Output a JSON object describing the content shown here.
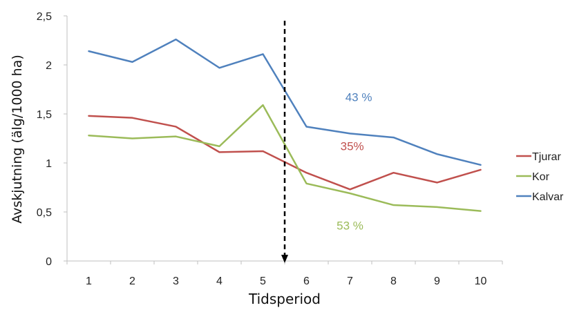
{
  "chart_data": {
    "type": "line",
    "title": "",
    "xlabel": "Tidsperiod",
    "ylabel": "Avskjutning (älg/1000 ha)",
    "x": [
      1,
      2,
      3,
      4,
      5,
      6,
      7,
      8,
      9,
      10
    ],
    "x_tick_labels": [
      "1",
      "2",
      "3",
      "4",
      "5",
      "6",
      "7",
      "8",
      "9",
      "10"
    ],
    "ylim": [
      0,
      2.5
    ],
    "y_tick_labels": [
      "0",
      "0,5",
      "1",
      "1,5",
      "2",
      "2,5"
    ],
    "grid": false,
    "legend_position": "right",
    "series": [
      {
        "name": "Tjurar",
        "color": "#c0504d",
        "values": [
          1.48,
          1.46,
          1.37,
          1.11,
          1.12,
          0.9,
          0.73,
          0.9,
          0.8,
          0.93
        ]
      },
      {
        "name": "Kor",
        "color": "#9bbb59",
        "values": [
          1.28,
          1.25,
          1.27,
          1.17,
          1.59,
          0.79,
          0.69,
          0.57,
          0.55,
          0.51
        ]
      },
      {
        "name": "Kalvar",
        "color": "#4f81bd",
        "values": [
          2.14,
          2.03,
          2.26,
          1.97,
          2.11,
          1.37,
          1.3,
          1.26,
          1.09,
          0.98
        ]
      }
    ],
    "annotations": [
      {
        "text": "43 %",
        "color": "#4f81bd",
        "x": 7.2,
        "y": 1.63
      },
      {
        "text": "35%",
        "color": "#c0504d",
        "x": 7.05,
        "y": 1.13
      },
      {
        "text": "53 %",
        "color": "#9bbb59",
        "x": 7.0,
        "y": 0.32
      }
    ],
    "divider": {
      "x": 5.5,
      "style": "dashed-arrow-down",
      "color": "#000000"
    }
  }
}
